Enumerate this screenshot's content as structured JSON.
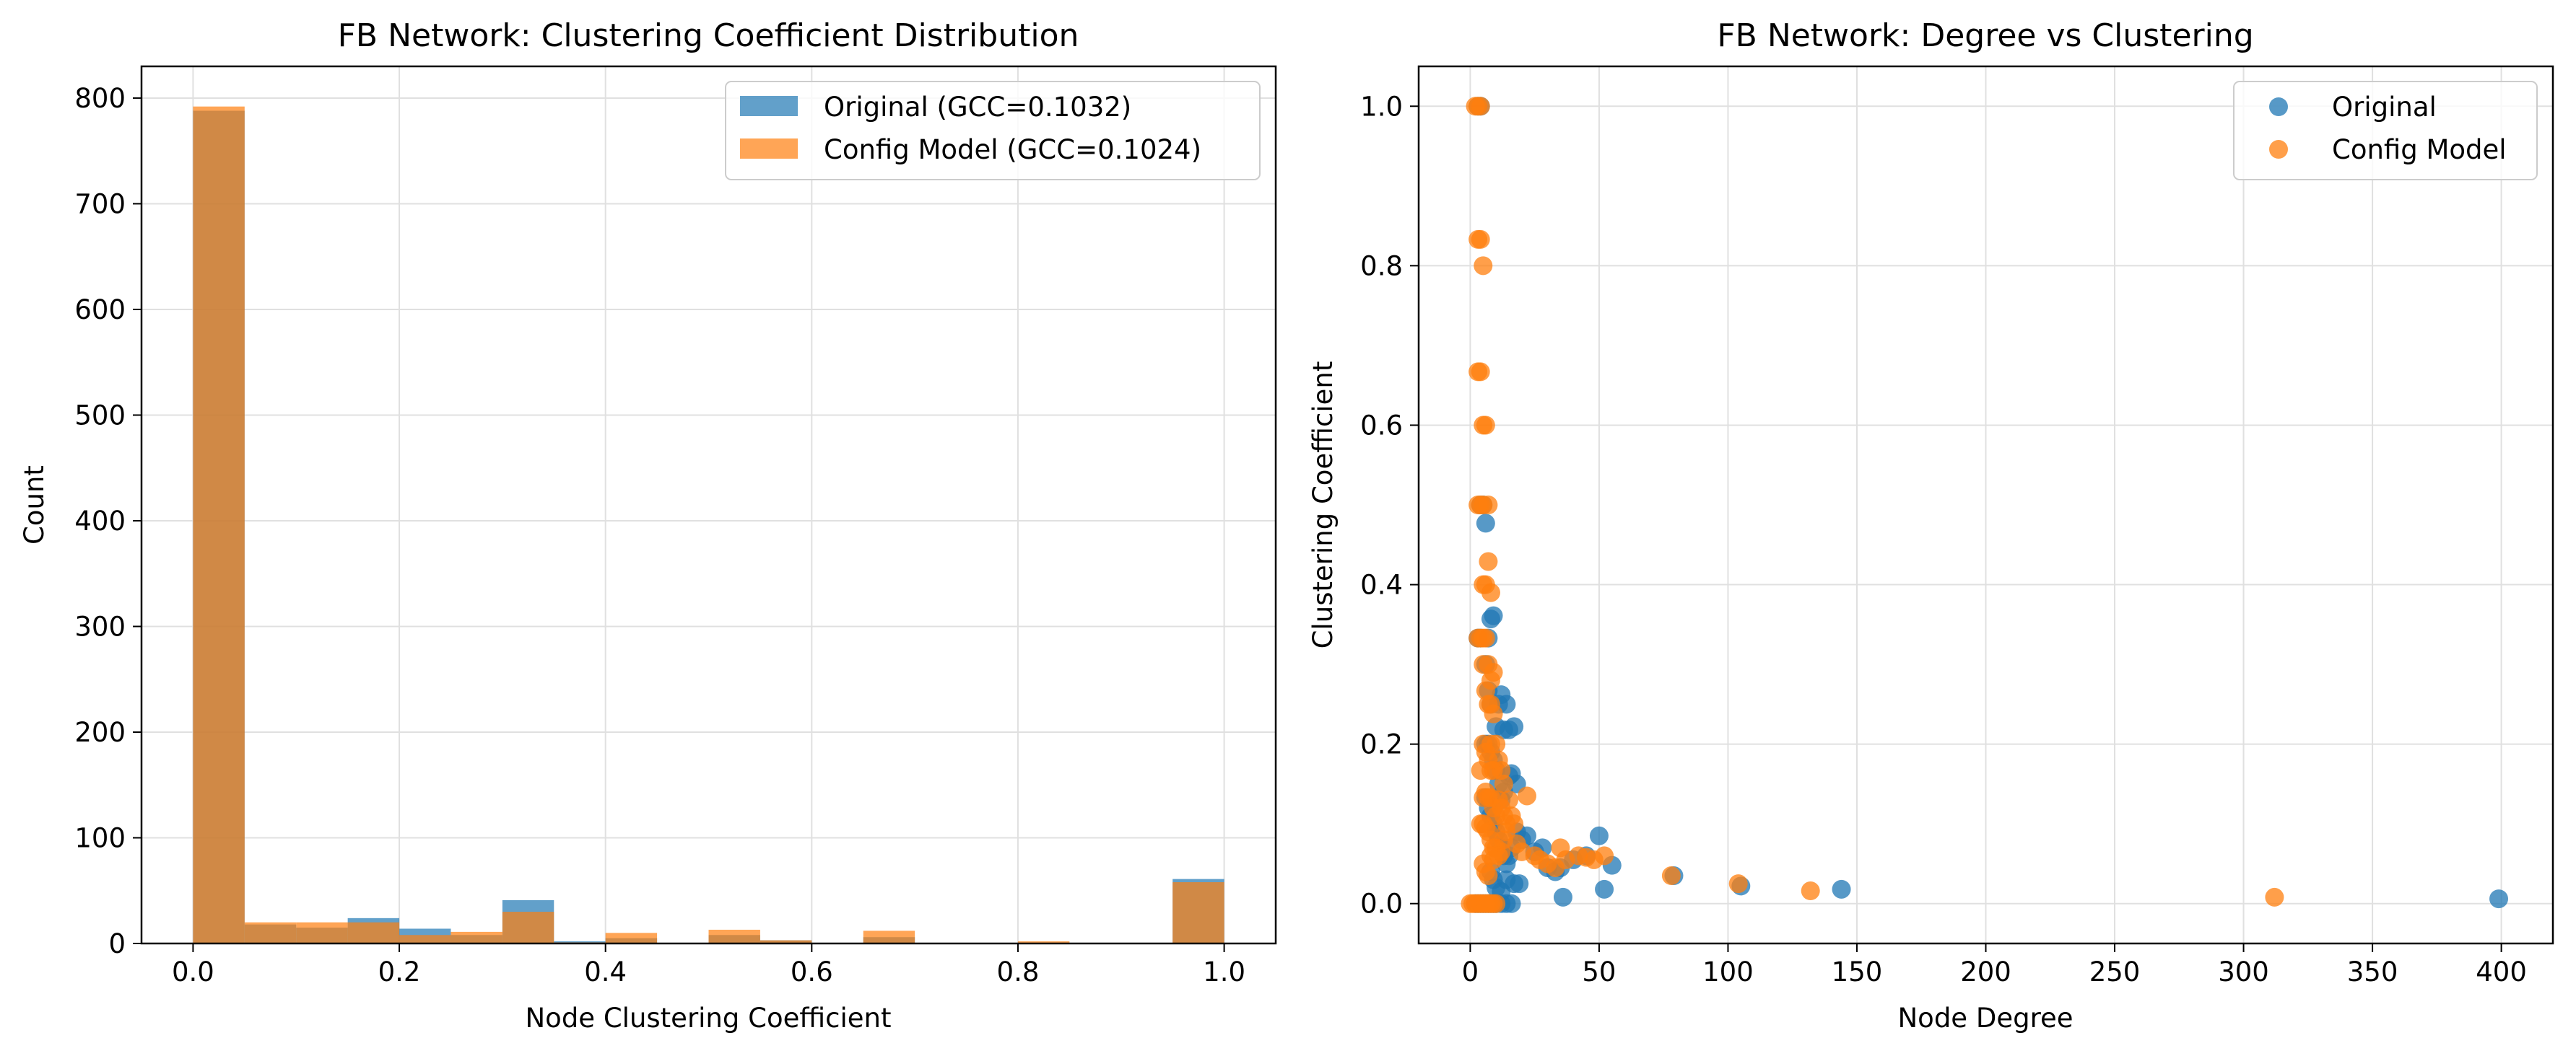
{
  "chart_data": [
    {
      "type": "bar",
      "title": "FB Network: Clustering Coefficient Distribution",
      "xlabel": "Node Clustering Coefficient",
      "ylabel": "Count",
      "xlim": [
        -0.05,
        1.05
      ],
      "ylim": [
        0,
        830
      ],
      "xticks": [
        0.0,
        0.2,
        0.4,
        0.6,
        0.8,
        1.0
      ],
      "xtick_labels": [
        "0.0",
        "0.2",
        "0.4",
        "0.6",
        "0.8",
        "1.0"
      ],
      "yticks": [
        0,
        100,
        200,
        300,
        400,
        500,
        600,
        700,
        800
      ],
      "ytick_labels": [
        "0",
        "100",
        "200",
        "300",
        "400",
        "500",
        "600",
        "700",
        "800"
      ],
      "grid": true,
      "legend_position": "top-right",
      "bin_edges": [
        0.0,
        0.05,
        0.1,
        0.15,
        0.2,
        0.25,
        0.3,
        0.35,
        0.4,
        0.45,
        0.5,
        0.55,
        0.6,
        0.65,
        0.7,
        0.75,
        0.8,
        0.85,
        0.9,
        0.95,
        1.0
      ],
      "series": [
        {
          "name": "Original (GCC=0.1032)",
          "color": "#1f77b4",
          "alpha": 0.7,
          "values": [
            788,
            18,
            15,
            24,
            14,
            8,
            41,
            2,
            5,
            0,
            8,
            3,
            0,
            6,
            0,
            0,
            0,
            0,
            0,
            61
          ]
        },
        {
          "name": "Config Model (GCC=0.1024)",
          "color": "#ff7f0e",
          "alpha": 0.7,
          "values": [
            792,
            20,
            20,
            20,
            8,
            11,
            30,
            1,
            10,
            0,
            13,
            3,
            0,
            12,
            0,
            0,
            2,
            0,
            0,
            58
          ]
        }
      ]
    },
    {
      "type": "scatter",
      "title": "FB Network: Degree vs Clustering",
      "xlabel": "Node Degree",
      "ylabel": "Clustering Coefficient",
      "xlim": [
        -20,
        420
      ],
      "ylim": [
        -0.05,
        1.05
      ],
      "xticks": [
        0,
        50,
        100,
        150,
        200,
        250,
        300,
        350,
        400
      ],
      "xtick_labels": [
        "0",
        "50",
        "100",
        "150",
        "200",
        "250",
        "300",
        "350",
        "400"
      ],
      "yticks": [
        0.0,
        0.2,
        0.4,
        0.6,
        0.8,
        1.0
      ],
      "ytick_labels": [
        "0.0",
        "0.2",
        "0.4",
        "0.6",
        "0.8",
        "1.0"
      ],
      "grid": true,
      "legend_position": "top-right",
      "series": [
        {
          "name": "Original",
          "color": "#1f77b4",
          "alpha": 0.75,
          "points": [
            [
              2,
              0.0
            ],
            [
              3,
              0.0
            ],
            [
              4,
              0.0
            ],
            [
              5,
              0.0
            ],
            [
              6,
              0.0
            ],
            [
              7,
              0.0
            ],
            [
              8,
              0.0
            ],
            [
              9,
              0.0
            ],
            [
              10,
              0.0
            ],
            [
              12,
              0.0
            ],
            [
              14,
              0.0
            ],
            [
              16,
              0.0
            ],
            [
              3,
              1.0
            ],
            [
              4,
              1.0
            ],
            [
              3,
              0.333
            ],
            [
              4,
              0.333
            ],
            [
              4,
              0.5
            ],
            [
              5,
              0.5
            ],
            [
              6,
              0.477
            ],
            [
              7,
              0.333
            ],
            [
              8,
              0.357
            ],
            [
              9,
              0.361
            ],
            [
              6,
              0.3
            ],
            [
              7,
              0.267
            ],
            [
              8,
              0.25
            ],
            [
              10,
              0.222
            ],
            [
              11,
              0.25
            ],
            [
              12,
              0.262
            ],
            [
              13,
              0.218
            ],
            [
              14,
              0.25
            ],
            [
              15,
              0.218
            ],
            [
              17,
              0.222
            ],
            [
              6,
              0.2
            ],
            [
              7,
              0.2
            ],
            [
              8,
              0.19
            ],
            [
              9,
              0.18
            ],
            [
              10,
              0.167
            ],
            [
              11,
              0.15
            ],
            [
              12,
              0.13
            ],
            [
              13,
              0.14
            ],
            [
              15,
              0.16
            ],
            [
              16,
              0.163
            ],
            [
              18,
              0.15
            ],
            [
              6,
              0.133
            ],
            [
              7,
              0.12
            ],
            [
              8,
              0.11
            ],
            [
              9,
              0.1
            ],
            [
              10,
              0.09
            ],
            [
              11,
              0.08
            ],
            [
              12,
              0.07
            ],
            [
              13,
              0.06
            ],
            [
              14,
              0.05
            ],
            [
              15,
              0.06
            ],
            [
              16,
              0.07
            ],
            [
              18,
              0.09
            ],
            [
              20,
              0.08
            ],
            [
              22,
              0.085
            ],
            [
              25,
              0.065
            ],
            [
              28,
              0.07
            ],
            [
              30,
              0.045
            ],
            [
              33,
              0.04
            ],
            [
              35,
              0.045
            ],
            [
              36,
              0.008
            ],
            [
              40,
              0.055
            ],
            [
              45,
              0.06
            ],
            [
              50,
              0.085
            ],
            [
              52,
              0.018
            ],
            [
              55,
              0.048
            ],
            [
              79,
              0.035
            ],
            [
              105,
              0.022
            ],
            [
              144,
              0.018
            ],
            [
              399,
              0.006
            ],
            [
              8,
              0.04
            ],
            [
              9,
              0.03
            ],
            [
              10,
              0.02
            ],
            [
              12,
              0.015
            ],
            [
              14,
              0.03
            ],
            [
              17,
              0.025
            ],
            [
              19,
              0.025
            ]
          ]
        },
        {
          "name": "Config Model",
          "color": "#ff7f0e",
          "alpha": 0.75,
          "points": [
            [
              0,
              0.0
            ],
            [
              1,
              0.0
            ],
            [
              2,
              0.0
            ],
            [
              3,
              0.0
            ],
            [
              4,
              0.0
            ],
            [
              5,
              0.0
            ],
            [
              6,
              0.0
            ],
            [
              7,
              0.0
            ],
            [
              8,
              0.0
            ],
            [
              9,
              0.0
            ],
            [
              10,
              0.0
            ],
            [
              2,
              1.0
            ],
            [
              3,
              1.0
            ],
            [
              4,
              1.0
            ],
            [
              3,
              0.833
            ],
            [
              4,
              0.833
            ],
            [
              5,
              0.8
            ],
            [
              3,
              0.667
            ],
            [
              4,
              0.667
            ],
            [
              5,
              0.6
            ],
            [
              6,
              0.6
            ],
            [
              3,
              0.5
            ],
            [
              4,
              0.5
            ],
            [
              5,
              0.5
            ],
            [
              7,
              0.5
            ],
            [
              5,
              0.4
            ],
            [
              6,
              0.4
            ],
            [
              7,
              0.429
            ],
            [
              8,
              0.39
            ],
            [
              3,
              0.333
            ],
            [
              4,
              0.333
            ],
            [
              5,
              0.333
            ],
            [
              6,
              0.333
            ],
            [
              5,
              0.3
            ],
            [
              7,
              0.3
            ],
            [
              8,
              0.28
            ],
            [
              9,
              0.29
            ],
            [
              6,
              0.267
            ],
            [
              7,
              0.25
            ],
            [
              8,
              0.25
            ],
            [
              9,
              0.238
            ],
            [
              10,
              0.2
            ],
            [
              8,
              0.2
            ],
            [
              5,
              0.2
            ],
            [
              4,
              0.167
            ],
            [
              6,
              0.19
            ],
            [
              7,
              0.18
            ],
            [
              8,
              0.167
            ],
            [
              9,
              0.167
            ],
            [
              11,
              0.18
            ],
            [
              12,
              0.167
            ],
            [
              13,
              0.15
            ],
            [
              5,
              0.133
            ],
            [
              6,
              0.14
            ],
            [
              7,
              0.133
            ],
            [
              8,
              0.133
            ],
            [
              9,
              0.12
            ],
            [
              10,
              0.11
            ],
            [
              11,
              0.13
            ],
            [
              12,
              0.12
            ],
            [
              13,
              0.11
            ],
            [
              14,
              0.1
            ],
            [
              15,
              0.13
            ],
            [
              16,
              0.11
            ],
            [
              17,
              0.1
            ],
            [
              4,
              0.1
            ],
            [
              5,
              0.1
            ],
            [
              6,
              0.095
            ],
            [
              7,
              0.09
            ],
            [
              8,
              0.08
            ],
            [
              9,
              0.07
            ],
            [
              10,
              0.07
            ],
            [
              11,
              0.06
            ],
            [
              12,
              0.065
            ],
            [
              13,
              0.08
            ],
            [
              14,
              0.09
            ],
            [
              5,
              0.05
            ],
            [
              6,
              0.04
            ],
            [
              7,
              0.035
            ],
            [
              8,
              0.06
            ],
            [
              9,
              0.055
            ],
            [
              18,
              0.075
            ],
            [
              20,
              0.065
            ],
            [
              22,
              0.135
            ],
            [
              25,
              0.06
            ],
            [
              27,
              0.055
            ],
            [
              30,
              0.05
            ],
            [
              33,
              0.045
            ],
            [
              35,
              0.07
            ],
            [
              37,
              0.055
            ],
            [
              42,
              0.06
            ],
            [
              45,
              0.058
            ],
            [
              48,
              0.055
            ],
            [
              52,
              0.06
            ],
            [
              78,
              0.035
            ],
            [
              104,
              0.025
            ],
            [
              132,
              0.016
            ],
            [
              312,
              0.008
            ]
          ]
        }
      ]
    }
  ]
}
